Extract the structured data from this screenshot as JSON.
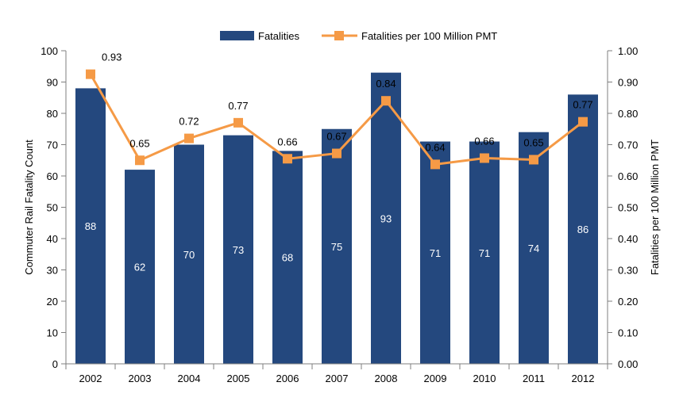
{
  "chart_data": {
    "type": "bar",
    "categories": [
      "2002",
      "2003",
      "2004",
      "2005",
      "2006",
      "2007",
      "2008",
      "2009",
      "2010",
      "2011",
      "2012"
    ],
    "series": [
      {
        "name": "Fatalities",
        "type": "bar",
        "axis": "left",
        "values": [
          88,
          62,
          70,
          73,
          68,
          75,
          93,
          71,
          71,
          74,
          86
        ],
        "labels": [
          "88",
          "62",
          "70",
          "73",
          "68",
          "75",
          "93",
          "71",
          "71",
          "74",
          "86"
        ]
      },
      {
        "name": "Fatalities per 100 Million PMT",
        "type": "line",
        "axis": "right",
        "values": [
          0.925,
          0.65,
          0.72,
          0.77,
          0.655,
          0.672,
          0.84,
          0.637,
          0.657,
          0.652,
          0.773
        ],
        "labels": [
          "0.93",
          "0.65",
          "0.72",
          "0.77",
          "0.66",
          "0.67",
          "0.84",
          "0.64",
          "0.66",
          "0.65",
          "0.77"
        ]
      }
    ],
    "ylabel": "Commuter Rail Fatality Count",
    "y2label": "Fatalities per 100 Million PMT",
    "ylim": [
      0,
      100
    ],
    "y2lim": [
      0,
      1.0
    ],
    "yticks": [
      "0",
      "10",
      "20",
      "30",
      "40",
      "50",
      "60",
      "70",
      "80",
      "90",
      "100"
    ],
    "y2ticks": [
      "0.00",
      "0.10",
      "0.20",
      "0.30",
      "0.40",
      "0.50",
      "0.60",
      "0.70",
      "0.80",
      "0.90",
      "1.00"
    ],
    "grid": false,
    "legend_position": "top-center",
    "colors": {
      "bar": "#24487e",
      "line": "#f59a46",
      "axis": "#7f7f7f"
    }
  }
}
